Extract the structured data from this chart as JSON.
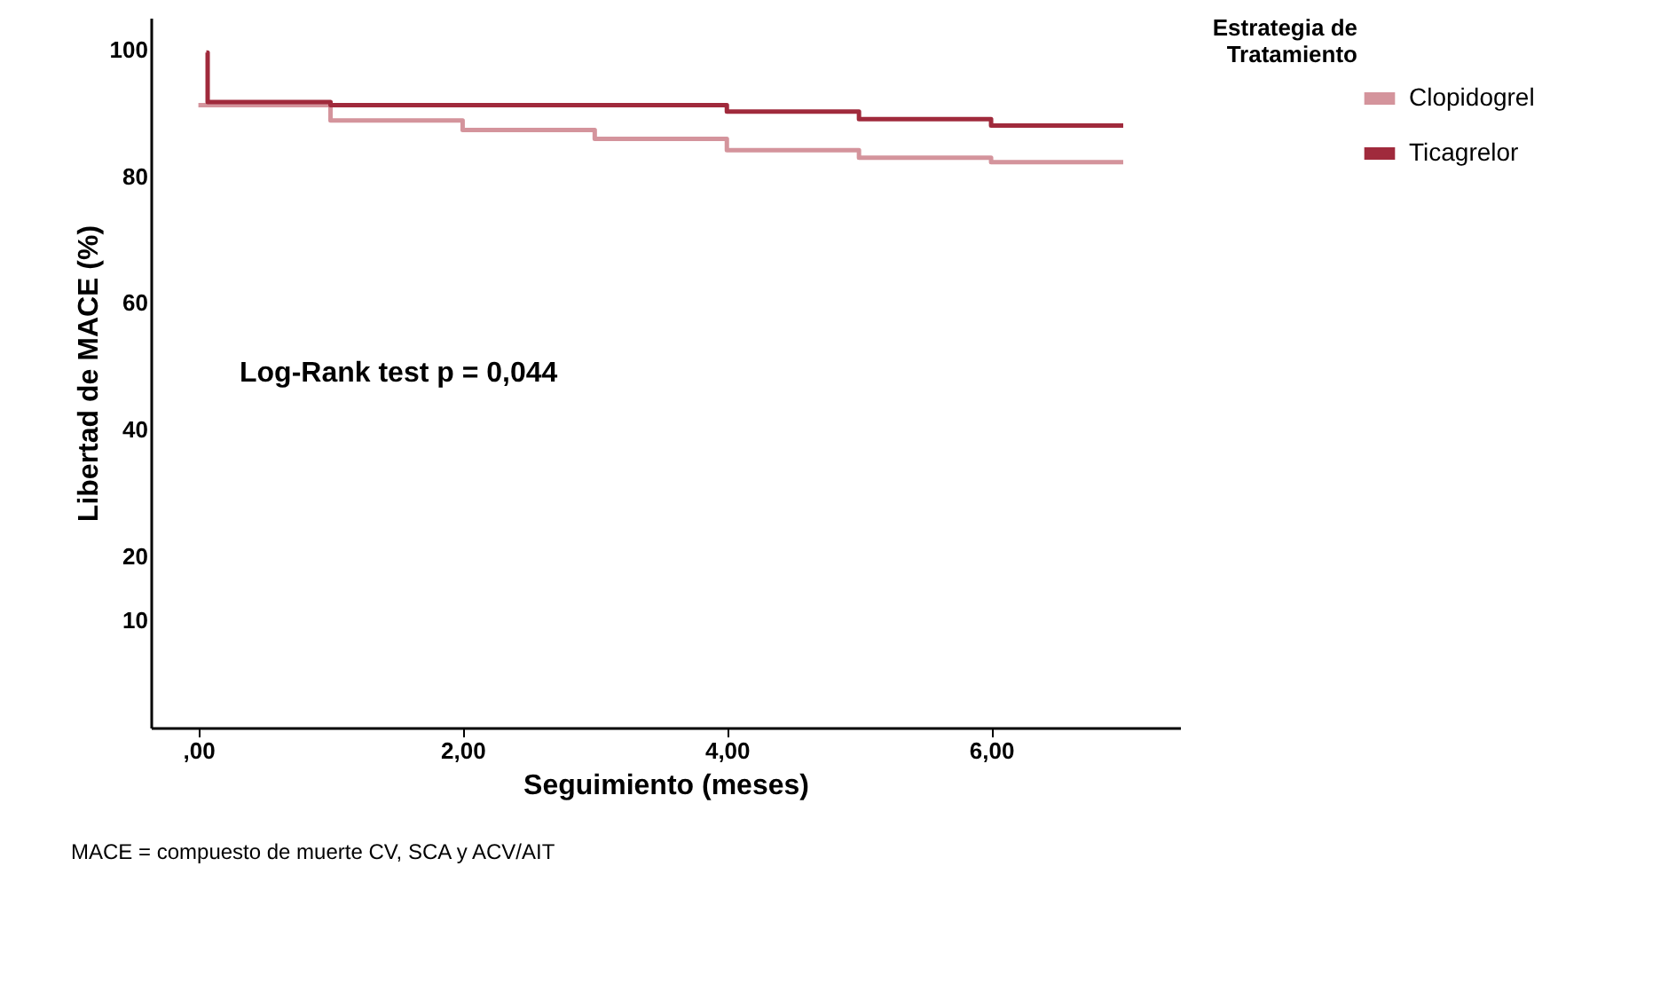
{
  "chart_data": {
    "type": "step",
    "xlabel": "Seguimiento (meses)",
    "ylabel": "Libertad de MACE (%)",
    "legend_title": "Estrategia de Tratamiento",
    "series": [
      {
        "name": "Clopidogrel",
        "color": "#d4949c",
        "x": [
          0,
          1,
          2,
          3,
          4,
          5,
          6,
          7
        ],
        "values": [
          91.2,
          88.8,
          87.3,
          85.9,
          84.1,
          82.9,
          82.2,
          82.2
        ]
      },
      {
        "name": "Ticagrelor",
        "color": "#a02a3c",
        "x": [
          0.06,
          0.07,
          1,
          4,
          5,
          6,
          7
        ],
        "values": [
          99.5,
          91.7,
          91.2,
          90.2,
          89.0,
          88.0,
          88.0
        ]
      }
    ],
    "xlim": [
      -0.36,
      7.43
    ],
    "xticks": [
      {
        "value": 0,
        "label": ",00"
      },
      {
        "value": 2,
        "label": "2,00"
      },
      {
        "value": 4,
        "label": "4,00"
      },
      {
        "value": 6,
        "label": "6,00"
      }
    ],
    "ylim": [
      -7,
      105
    ],
    "yticks": [
      10,
      20,
      40,
      60,
      80,
      100
    ],
    "annotations": [
      "Log-Rank test p = 0,044",
      "MACE = compuesto de muerte CV, SCA y ACV/AIT"
    ],
    "grid": false,
    "legend": "top right",
    "marker": "none",
    "line_style": "solid"
  }
}
